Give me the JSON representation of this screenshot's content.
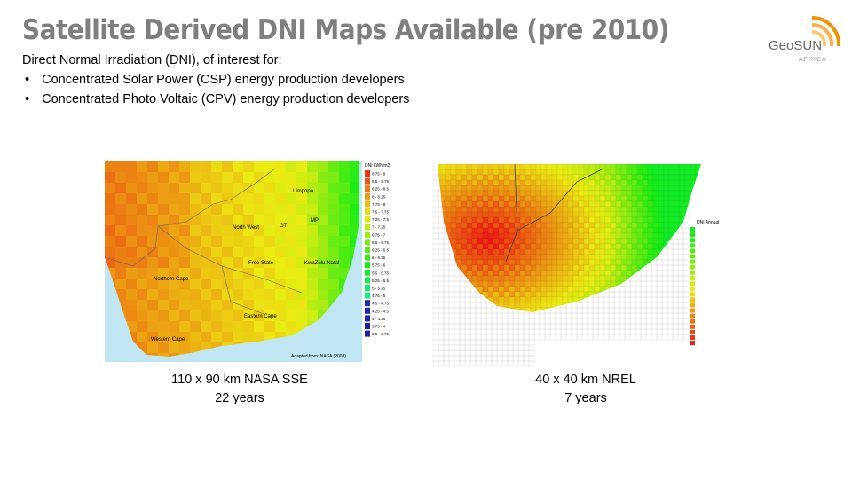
{
  "header": {
    "title": "Satellite Derived DNI Maps Available (pre 2010)",
    "intro": "Direct Normal Irradiation (DNI), of interest for:",
    "bullets": [
      "Concentrated Solar Power (CSP) energy production developers",
      "Concentrated Photo Voltaic (CPV) energy production developers"
    ]
  },
  "logo": {
    "name": "GeoSUN",
    "sub": "AFRICA"
  },
  "left_map": {
    "legend_title": "DNI kWh/m2",
    "legend": [
      "8.75 - 9",
      "8.5 - 8.75",
      "8.25 - 8.5",
      "8 - 8.25",
      "7.75 - 8",
      "7.5 - 7.75",
      "7.25 - 7.5",
      "7 - 7.25",
      "6.75 - 7",
      "6.5 - 6.75",
      "6.25 - 6.5",
      "6 - 6.25",
      "5.75 - 6",
      "5.5 - 5.75",
      "5.25 - 5.5",
      "5 - 5.25",
      "4.75 - 5",
      "4.5 - 4.75",
      "4.25 - 4.5",
      "4 - 4.25",
      "3.75 - 4",
      "3.5 - 3.75"
    ],
    "regions": [
      "Limpopo",
      "North West",
      "GT",
      "MP",
      "Free State",
      "KwaZulu-Natal",
      "Northern Cape",
      "Eastern Cape",
      "Western Cape"
    ],
    "source": "Adapted from: NASA (2008)",
    "caption": [
      "110 x 90 km NASA SSE",
      "22 years"
    ]
  },
  "right_map": {
    "legend_title": "DNI Annual",
    "caption": [
      "40 x 40 km NREL",
      "7 years"
    ]
  }
}
